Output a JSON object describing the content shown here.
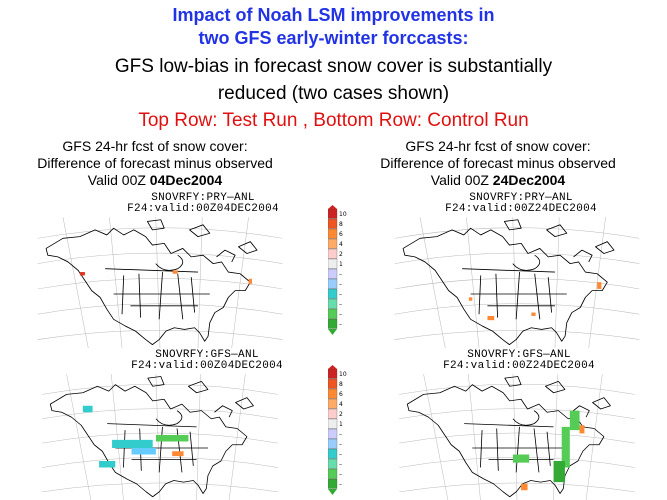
{
  "title": {
    "line1": "Impact of Noah LSM improvements in",
    "line2": "two GFS early-winter forccasts:",
    "line3": "GFS low-bias in forecast snow cover is substantially",
    "line4": "reduced (two cases shown)",
    "rows_note": "Top Row: Test Run , Bottom Row: Control Run"
  },
  "captions": [
    {
      "line1": "GFS 24-hr fcst of snow cover:",
      "line2": "Difference of forecast minus observed",
      "valid_prefix": "Valid 00Z ",
      "date": "04Dec2004"
    },
    {
      "line1": "GFS 24-hr fcst of snow cover:",
      "line2": "Difference of forecast minus observed",
      "valid_prefix": "Valid 00Z ",
      "date": "24Dec2004"
    }
  ],
  "maps": {
    "top_left": {
      "var": "SNOVRFY:PRY—ANL",
      "valid": "F24:valid:00Z04DEC2004"
    },
    "top_right": {
      "var": "SNOVRFY:PRY—ANL",
      "valid": "F24:valid:00Z24DEC2004"
    },
    "bottom_left": {
      "var": "SNOVRFY:GFS—ANL",
      "valid": "F24:valid:00Z04DEC2004"
    },
    "bottom_right": {
      "var": "SNOVRFY:GFS—ANL",
      "valid": "F24:valid:00Z24DEC2004"
    }
  },
  "colorbar": {
    "labels": [
      "10",
      "8",
      "6",
      "4",
      "2",
      "1",
      "–",
      "–",
      "–",
      "–",
      "–",
      "–"
    ],
    "colors": [
      "#cc2222",
      "#ee5522",
      "#ff8833",
      "#ffaa66",
      "#ffcccc",
      "#eeeeee",
      "#ccccff",
      "#99ccff",
      "#33cccc",
      "#66ddaa",
      "#55cc55",
      "#33aa33"
    ]
  },
  "colors": {
    "title_blue": "#2233e6",
    "title_red": "#e01010"
  }
}
